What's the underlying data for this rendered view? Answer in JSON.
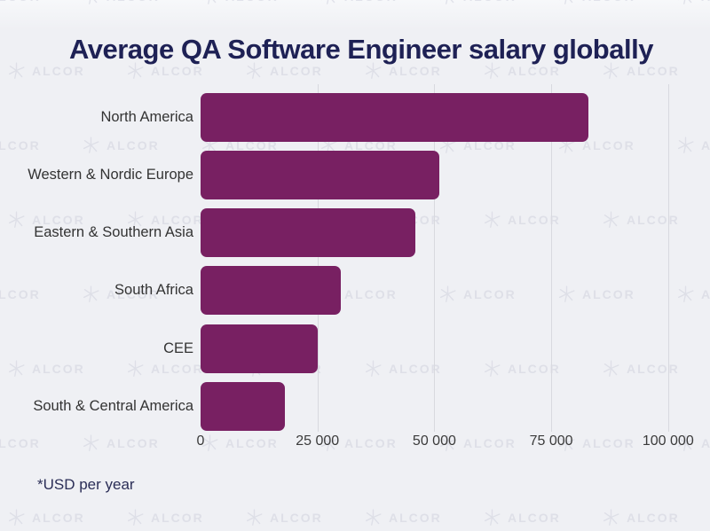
{
  "title": "Average QA Software Engineer salary globally",
  "footnote": "*USD per year",
  "watermark": {
    "text": "ALCOR",
    "icon": "alcor-star-logo",
    "color": "#d3d5e0"
  },
  "colors": {
    "background": "#eff0f4",
    "bar": "#782062",
    "title_text": "#1e2155",
    "category_text": "#333333",
    "axis_text": "#3b3b3b",
    "gridline": "#d8d9df",
    "footnote_text": "#2b2e57",
    "watermark": "#d3d5e0"
  },
  "chart_data": {
    "type": "bar",
    "orientation": "horizontal",
    "title": "Average QA Software Engineer salary globally",
    "footnote": "*USD per year",
    "categories": [
      "North America",
      "Western & Nordic Europe",
      "Eastern & Southern Asia",
      "South Africa",
      "CEE",
      "South & Central America"
    ],
    "values": [
      83000,
      51000,
      46000,
      30000,
      25000,
      18000
    ],
    "unit": "USD per year",
    "xlabel": "",
    "ylabel": "",
    "xlim": [
      0,
      103000
    ],
    "xticks": {
      "values": [
        0,
        25000,
        50000,
        75000,
        100000
      ],
      "labels": [
        "0",
        "25 000",
        "50 000",
        "75 000",
        "100 000"
      ]
    },
    "grid": "vertical",
    "legend": "none",
    "bar_color": "#782062"
  }
}
